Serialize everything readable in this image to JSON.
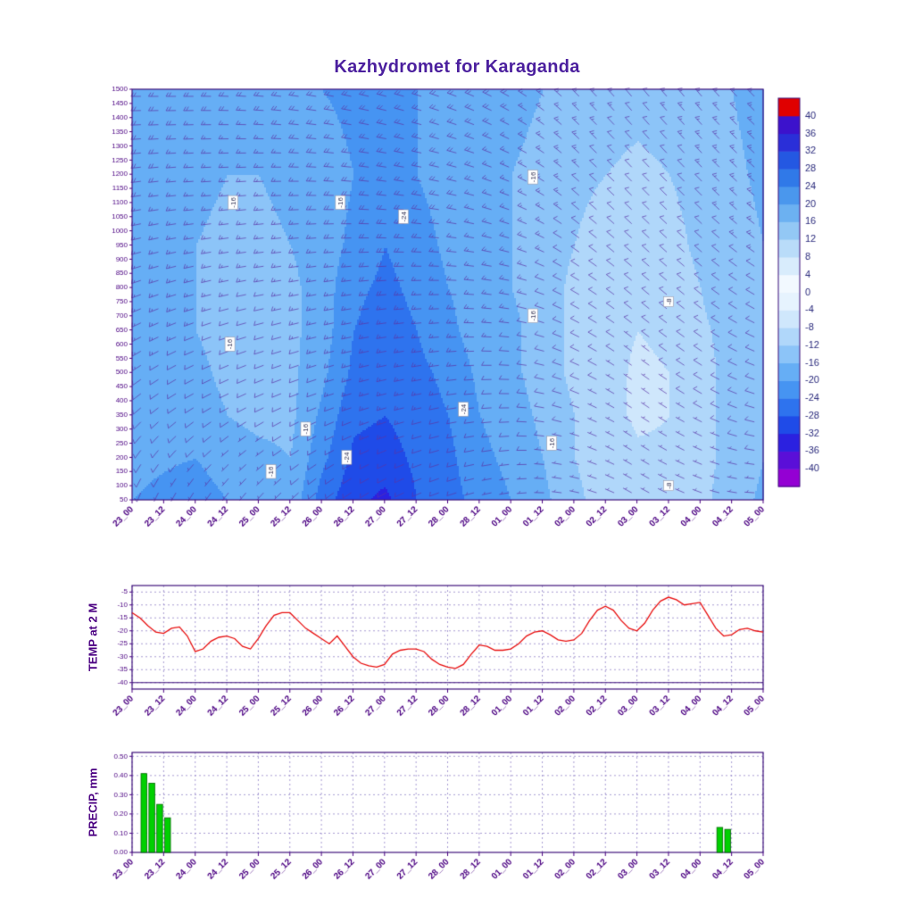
{
  "title": "Kazhydromet for Karaganda",
  "colors": {
    "title": "#4b1f9e",
    "axis": "#4b0082",
    "tick_label": "#4b0082",
    "grid": "#9283c8",
    "frame": "#3d0f7a",
    "barb": "#5a35a8",
    "temp_line": "#e81010",
    "precip_fill": "#00d000",
    "precip_edge": "#006600",
    "cbar_label": "#2a2a7c",
    "contour_label_text": "#333355"
  },
  "x_axis": {
    "labels": [
      "23_00",
      "23_12",
      "24_00",
      "24_12",
      "25_00",
      "25_12",
      "26_00",
      "26_12",
      "27_00",
      "27_12",
      "28_00",
      "28_12",
      "01_00",
      "01_12",
      "02_00",
      "02_12",
      "03_00",
      "03_12",
      "04_00",
      "04_12",
      "05_00"
    ]
  },
  "chart_data": [
    {
      "type": "heatmap",
      "name": "temperature-wind-cross-section",
      "title": "Kazhydromet for Karaganda",
      "y_ticks": [
        50,
        100,
        150,
        200,
        250,
        300,
        350,
        400,
        450,
        500,
        550,
        600,
        650,
        700,
        750,
        800,
        850,
        900,
        950,
        1000,
        1050,
        1100,
        1150,
        1200,
        1250,
        1300,
        1350,
        1400,
        1450,
        1500
      ],
      "y_range": [
        50,
        1500
      ],
      "colorbar": {
        "levels": [
          -40,
          -36,
          -32,
          -28,
          -24,
          -20,
          -16,
          -12,
          -8,
          -4,
          0,
          4,
          8,
          12,
          16,
          20,
          24,
          28,
          32,
          36,
          40
        ],
        "colors": [
          "#9400d3",
          "#5a0fd8",
          "#2b21e0",
          "#1f4be8",
          "#2e73ee",
          "#4694f2",
          "#66aef5",
          "#8cc4f8",
          "#b0d7fa",
          "#cfe7fc",
          "#e6f3fe",
          "#f2f9ff",
          "#d8ecfc",
          "#b9dcf9",
          "#93c8f5",
          "#6cb1f1",
          "#4a97ed",
          "#3079e8",
          "#2458e2",
          "#2a2fd8",
          "#3c12cc",
          "#e00000"
        ]
      },
      "grid": {
        "levels": [
          50,
          200,
          350,
          500,
          650,
          800,
          950,
          1200,
          1500
        ],
        "values": [
          [
            -20,
            -19,
            -18,
            -17,
            -17,
            -17,
            -17,
            -18,
            -19
          ],
          [
            -21,
            -19.5,
            -18,
            -17,
            -17,
            -17,
            -17,
            -18,
            -19
          ],
          [
            -22,
            -20,
            -18,
            -17,
            -16,
            -16,
            -16,
            -17,
            -18
          ],
          [
            -20,
            -18,
            -16,
            -15,
            -14.5,
            -14.5,
            -15,
            -16,
            -18
          ],
          [
            -18,
            -17,
            -15,
            -14,
            -14,
            -14,
            -15,
            -16,
            -18
          ],
          [
            -17,
            -16,
            -15,
            -15,
            -15,
            -15,
            -16,
            -17,
            -19
          ],
          [
            -26,
            -23,
            -21,
            -19,
            -18,
            -18,
            -18,
            -18,
            -20
          ],
          [
            -31,
            -29,
            -27,
            -25,
            -24,
            -23,
            -21,
            -20,
            -21
          ],
          [
            -33,
            -30,
            -28,
            -27,
            -26,
            -25,
            -24,
            -21,
            -21
          ],
          [
            -28,
            -27,
            -26,
            -25,
            -24,
            -23,
            -22,
            -20,
            -20
          ],
          [
            -26,
            -25,
            -24,
            -23,
            -21,
            -20,
            -19,
            -18,
            -19
          ],
          [
            -22,
            -21,
            -20,
            -19,
            -18,
            -18,
            -17,
            -17,
            -18
          ],
          [
            -20,
            -19,
            -18,
            -17,
            -17,
            -16,
            -16,
            -16,
            -17
          ],
          [
            -17,
            -16,
            -15,
            -14,
            -14,
            -14,
            -14,
            -15,
            -16
          ],
          [
            -13,
            -12,
            -12,
            -11,
            -11,
            -11,
            -12,
            -13,
            -15
          ],
          [
            -10,
            -10,
            -9,
            -9,
            -9,
            -10,
            -10,
            -12,
            -14
          ],
          [
            -9,
            -8.5,
            -7.5,
            -7.5,
            -8,
            -8.5,
            -9.5,
            -11,
            -13.5
          ],
          [
            -8,
            -8.5,
            -8,
            -8,
            -8.5,
            -9.5,
            -10.5,
            -12,
            -14
          ],
          [
            -11,
            -11,
            -11,
            -11,
            -11.5,
            -12,
            -13,
            -13.5,
            -15
          ],
          [
            -14,
            -13,
            -13,
            -13,
            -13,
            -14,
            -14,
            -15,
            -16
          ],
          [
            -17,
            -16,
            -15,
            -15,
            -15,
            -15,
            -16,
            -17,
            -18
          ]
        ]
      },
      "wind": {
        "levels": [
          50,
          400,
          800,
          1100,
          1500
        ],
        "time_step": 2,
        "dir": [
          [
            200,
            230,
            250,
            260,
            270
          ],
          [
            210,
            240,
            255,
            265,
            270
          ],
          [
            220,
            245,
            260,
            265,
            275
          ],
          [
            230,
            250,
            260,
            270,
            280
          ],
          [
            240,
            255,
            265,
            275,
            285
          ],
          [
            250,
            260,
            270,
            280,
            290
          ],
          [
            260,
            270,
            280,
            290,
            300
          ],
          [
            280,
            290,
            300,
            310,
            315
          ],
          [
            300,
            305,
            310,
            315,
            320
          ],
          [
            290,
            300,
            310,
            315,
            320
          ],
          [
            270,
            285,
            300,
            310,
            315
          ]
        ],
        "spd": [
          [
            8,
            12,
            15,
            18,
            20
          ],
          [
            6,
            10,
            14,
            16,
            18
          ],
          [
            5,
            8,
            12,
            15,
            18
          ],
          [
            8,
            12,
            16,
            18,
            20
          ],
          [
            10,
            15,
            18,
            20,
            22
          ],
          [
            8,
            12,
            16,
            18,
            20
          ],
          [
            6,
            10,
            14,
            16,
            18
          ],
          [
            5,
            8,
            10,
            12,
            15
          ],
          [
            4,
            6,
            8,
            10,
            12
          ],
          [
            5,
            8,
            10,
            12,
            14
          ],
          [
            6,
            10,
            12,
            15,
            18
          ]
        ]
      },
      "contour_labels": [
        {
          "t": 3.2,
          "level": 1100,
          "text": "-16"
        },
        {
          "t": 6.6,
          "level": 1100,
          "text": "-16"
        },
        {
          "t": 8.6,
          "level": 1050,
          "text": "-24"
        },
        {
          "t": 12.7,
          "level": 1190,
          "text": "-16"
        },
        {
          "t": 3.1,
          "level": 600,
          "text": "-16"
        },
        {
          "t": 12.7,
          "level": 700,
          "text": "-16"
        },
        {
          "t": 17.0,
          "level": 750,
          "text": "-8"
        },
        {
          "t": 5.5,
          "level": 300,
          "text": "-16"
        },
        {
          "t": 10.5,
          "level": 370,
          "text": "-24"
        },
        {
          "t": 13.3,
          "level": 250,
          "text": "-16"
        },
        {
          "t": 6.8,
          "level": 200,
          "text": "-24"
        },
        {
          "t": 4.4,
          "level": 150,
          "text": "-16"
        },
        {
          "t": 17.0,
          "level": 100,
          "text": "-8"
        }
      ]
    },
    {
      "type": "line",
      "name": "temp-2m",
      "ylabel": "TEMP at 2 M",
      "y_ticks": [
        -40,
        -35,
        -30,
        -25,
        -20,
        -15,
        -10,
        -5
      ],
      "ylim": [
        -42.5,
        -2.5
      ],
      "step_hours": 3,
      "values": [
        -13,
        -15,
        -18,
        -20.5,
        -21,
        -19,
        -18.5,
        -22,
        -28,
        -27,
        -24,
        -22.5,
        -22,
        -23,
        -26,
        -27,
        -23,
        -18,
        -14,
        -13,
        -13,
        -16,
        -19,
        -21,
        -23,
        -25,
        -22,
        -26,
        -30,
        -32.5,
        -33.5,
        -34,
        -33,
        -29,
        -27.5,
        -27,
        -27,
        -28,
        -31,
        -33,
        -34,
        -34.5,
        -33,
        -29,
        -25.5,
        -26,
        -27.5,
        -27.5,
        -27,
        -25,
        -22,
        -20.5,
        -20,
        -21.5,
        -23.5,
        -24,
        -23.5,
        -21,
        -16,
        -12,
        -10.5,
        -12,
        -16,
        -19,
        -20,
        -17,
        -12,
        -8.5,
        -7,
        -8,
        -10,
        -9.5,
        -9,
        -14,
        -19,
        -22,
        -21.5,
        -19.5,
        -19,
        -20,
        -20.5
      ]
    },
    {
      "type": "bar",
      "name": "precip",
      "ylabel": "PRECIP, mm",
      "y_ticks": [
        0,
        0.1,
        0.2,
        0.3,
        0.4,
        0.5
      ],
      "ylim": [
        0,
        0.52
      ],
      "step_hours": 3,
      "values": [
        0,
        0.41,
        0.36,
        0.25,
        0.18,
        0,
        0,
        0,
        0,
        0,
        0,
        0,
        0,
        0,
        0,
        0,
        0,
        0,
        0,
        0,
        0,
        0,
        0,
        0,
        0,
        0,
        0,
        0,
        0,
        0,
        0,
        0,
        0,
        0,
        0,
        0,
        0,
        0,
        0,
        0,
        0,
        0,
        0,
        0,
        0,
        0,
        0,
        0,
        0,
        0,
        0,
        0,
        0,
        0,
        0,
        0,
        0,
        0,
        0,
        0,
        0,
        0,
        0,
        0,
        0,
        0,
        0,
        0,
        0,
        0,
        0,
        0,
        0,
        0,
        0.13,
        0.12,
        0,
        0,
        0,
        0
      ]
    }
  ]
}
